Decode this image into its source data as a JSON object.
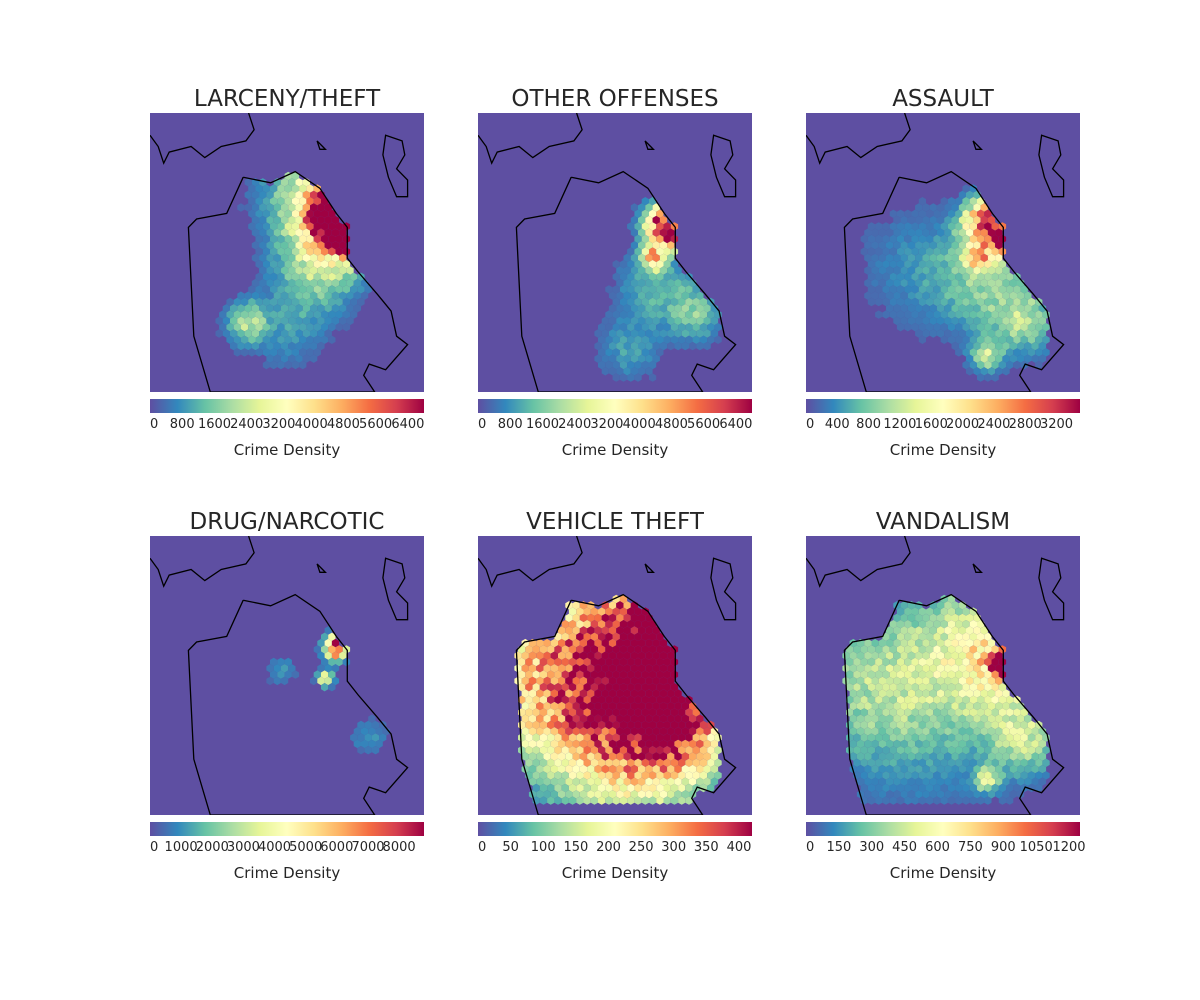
{
  "colormap": [
    "#5e4fa2",
    "#3288bd",
    "#66c2a5",
    "#abdda4",
    "#e6f598",
    "#ffffbf",
    "#fee08b",
    "#fdae61",
    "#f46d43",
    "#d53e4f",
    "#9e0142"
  ],
  "map_background": "#5e4fa2",
  "coastline_color": "#000000",
  "chart_data": [
    {
      "type": "heatmap",
      "title": "LARCENY/THEFT",
      "colorbar_label": "Crime Density",
      "colorbar_ticks": [
        "0",
        "800",
        "1600",
        "2400",
        "3200",
        "4000",
        "4800",
        "5600",
        "6400"
      ],
      "colorbar_range": [
        0,
        6800
      ],
      "hotspots": [
        {
          "x": 0.63,
          "y": 0.28,
          "r": 0.14,
          "v": 0.38
        },
        {
          "x": 0.7,
          "y": 0.37,
          "r": 0.09,
          "v": 0.95
        },
        {
          "x": 0.67,
          "y": 0.38,
          "r": 0.05,
          "v": 0.75
        },
        {
          "x": 0.72,
          "y": 0.46,
          "r": 0.03,
          "v": 1.0
        },
        {
          "x": 0.62,
          "y": 0.55,
          "r": 0.11,
          "v": 0.28
        },
        {
          "x": 0.35,
          "y": 0.75,
          "r": 0.05,
          "v": 0.32
        },
        {
          "x": 0.5,
          "y": 0.78,
          "r": 0.1,
          "v": 0.12
        }
      ]
    },
    {
      "type": "heatmap",
      "title": "OTHER OFFENSES",
      "colorbar_label": "Crime Density",
      "colorbar_ticks": [
        "0",
        "800",
        "1600",
        "2400",
        "3200",
        "4000",
        "4800",
        "5600",
        "6400"
      ],
      "colorbar_range": [
        0,
        6800
      ],
      "hotspots": [
        {
          "x": 0.68,
          "y": 0.4,
          "r": 0.05,
          "v": 1.0
        },
        {
          "x": 0.72,
          "y": 0.45,
          "r": 0.03,
          "v": 0.55
        },
        {
          "x": 0.64,
          "y": 0.52,
          "r": 0.03,
          "v": 0.58
        },
        {
          "x": 0.65,
          "y": 0.62,
          "r": 0.1,
          "v": 0.18
        },
        {
          "x": 0.8,
          "y": 0.72,
          "r": 0.07,
          "v": 0.22
        },
        {
          "x": 0.55,
          "y": 0.85,
          "r": 0.08,
          "v": 0.14
        }
      ]
    },
    {
      "type": "heatmap",
      "title": "ASSAULT",
      "colorbar_label": "Crime Density",
      "colorbar_ticks": [
        "0",
        "400",
        "800",
        "1200",
        "1600",
        "2000",
        "2400",
        "2800",
        "3200"
      ],
      "colorbar_range": [
        0,
        3500
      ],
      "hotspots": [
        {
          "x": 0.67,
          "y": 0.4,
          "r": 0.06,
          "v": 1.0
        },
        {
          "x": 0.72,
          "y": 0.46,
          "r": 0.03,
          "v": 0.6
        },
        {
          "x": 0.63,
          "y": 0.52,
          "r": 0.03,
          "v": 0.5
        },
        {
          "x": 0.66,
          "y": 0.6,
          "r": 0.13,
          "v": 0.24
        },
        {
          "x": 0.8,
          "y": 0.75,
          "r": 0.08,
          "v": 0.26
        },
        {
          "x": 0.66,
          "y": 0.87,
          "r": 0.04,
          "v": 0.34
        },
        {
          "x": 0.4,
          "y": 0.55,
          "r": 0.16,
          "v": 0.1
        }
      ]
    },
    {
      "type": "heatmap",
      "title": "DRUG/NARCOTIC",
      "colorbar_label": "Crime Density",
      "colorbar_ticks": [
        "0",
        "1000",
        "2000",
        "3000",
        "4000",
        "5000",
        "6000",
        "7000",
        "8000"
      ],
      "colorbar_range": [
        0,
        8800
      ],
      "hotspots": [
        {
          "x": 0.68,
          "y": 0.4,
          "r": 0.03,
          "v": 1.0
        },
        {
          "x": 0.64,
          "y": 0.51,
          "r": 0.02,
          "v": 0.55
        },
        {
          "x": 0.8,
          "y": 0.72,
          "r": 0.05,
          "v": 0.12
        },
        {
          "x": 0.48,
          "y": 0.48,
          "r": 0.04,
          "v": 0.12
        }
      ]
    },
    {
      "type": "heatmap",
      "title": "VEHICLE THEFT",
      "colorbar_label": "Crime Density",
      "colorbar_ticks": [
        "0",
        "50",
        "100",
        "150",
        "200",
        "250",
        "300",
        "350",
        "400"
      ],
      "colorbar_range": [
        0,
        420
      ],
      "hotspots": [
        {
          "x": 0.65,
          "y": 0.45,
          "r": 0.22,
          "v": 0.7
        },
        {
          "x": 0.68,
          "y": 0.38,
          "r": 0.05,
          "v": 1.0
        },
        {
          "x": 0.62,
          "y": 0.55,
          "r": 0.08,
          "v": 0.8
        },
        {
          "x": 0.4,
          "y": 0.45,
          "r": 0.25,
          "v": 0.42
        },
        {
          "x": 0.2,
          "y": 0.55,
          "r": 0.18,
          "v": 0.3
        },
        {
          "x": 0.55,
          "y": 0.78,
          "r": 0.18,
          "v": 0.45
        },
        {
          "x": 0.75,
          "y": 0.7,
          "r": 0.12,
          "v": 0.4
        },
        {
          "x": 0.68,
          "y": 0.25,
          "r": 0.1,
          "v": 0.55
        }
      ]
    },
    {
      "type": "heatmap",
      "title": "VANDALISM",
      "colorbar_label": "Crime Density",
      "colorbar_ticks": [
        "0",
        "150",
        "300",
        "450",
        "600",
        "750",
        "900",
        "1050",
        "1200"
      ],
      "colorbar_range": [
        0,
        1250
      ],
      "hotspots": [
        {
          "x": 0.68,
          "y": 0.42,
          "r": 0.14,
          "v": 0.42
        },
        {
          "x": 0.72,
          "y": 0.46,
          "r": 0.03,
          "v": 1.0
        },
        {
          "x": 0.45,
          "y": 0.5,
          "r": 0.28,
          "v": 0.22
        },
        {
          "x": 0.8,
          "y": 0.72,
          "r": 0.09,
          "v": 0.28
        },
        {
          "x": 0.66,
          "y": 0.87,
          "r": 0.03,
          "v": 0.4
        },
        {
          "x": 0.25,
          "y": 0.55,
          "r": 0.18,
          "v": 0.16
        }
      ]
    }
  ]
}
